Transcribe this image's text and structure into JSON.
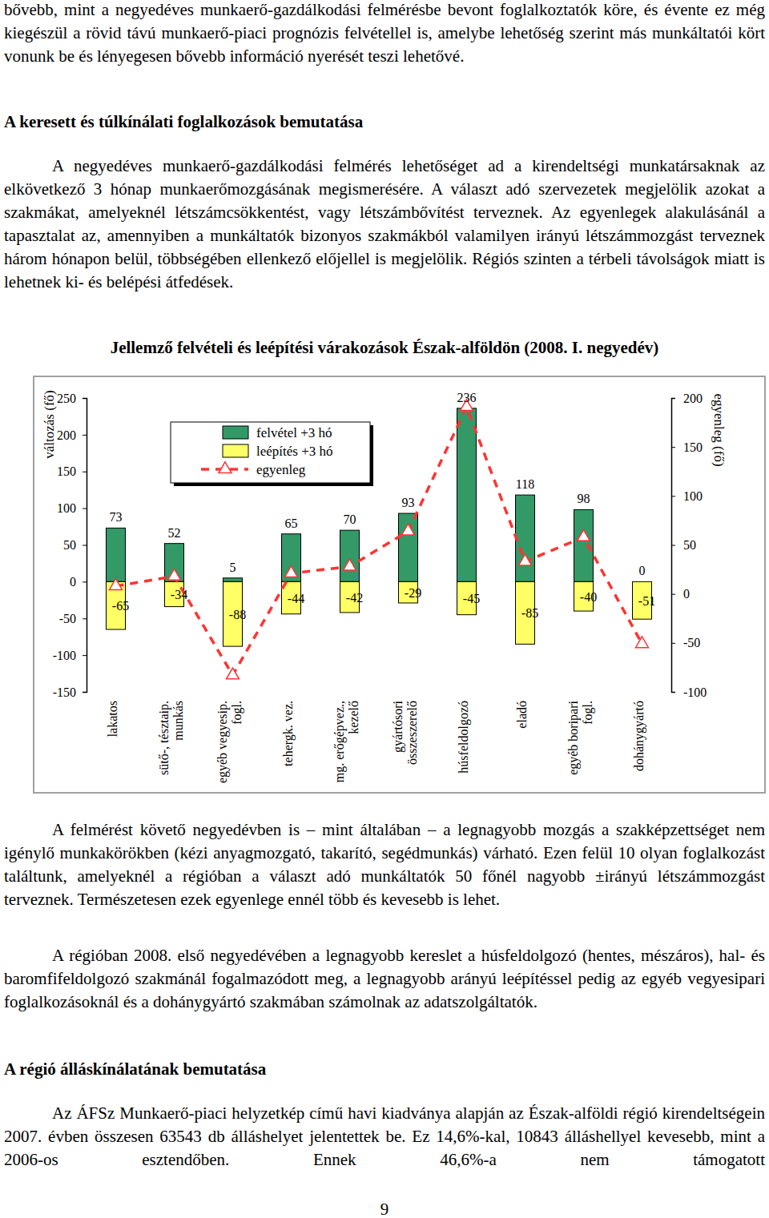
{
  "document": {
    "intro": "bővebb, mint a negyedéves munkaerő-gazdálkodási felmérésbe bevont foglalkoztatók köre, és évente ez még kiegészül a rövid távú munkaerő-piaci prognózis felvétellel is, amelybe lehetőség szerint más munkáltatói kört vonunk be és lényegesen bővebb információ nyerését teszi lehetővé.",
    "heading_1": "A keresett és túlkínálati foglalkozások bemutatása",
    "paragraph_1": "A negyedéves munkaerő-gazdálkodási felmérés lehetőséget ad a kirendeltségi munkatársaknak az elkövetkező 3 hónap munkaerőmozgásának megismerésére. A választ adó szervezetek megjelölik azokat a szakmákat, amelyeknél létszámcsökkentést, vagy létszámbővítést terveznek. Az egyenlegek alakulásánál a tapasztalat az, amennyiben a munkáltatók bizonyos szakmákból valamilyen irányú létszámmozgást terveznek három hónapon belül, többségében ellenkező előjellel is megjelölik. Régiós szinten a térbeli távolságok miatt is lehetnek ki- és belépési átfedések.",
    "paragraph_2": "A felmérést követő negyedévben is – mint általában – a legnagyobb mozgás a szakképzettséget nem igénylő munkakörökben (kézi anyagmozgató, takarító, segédmunkás) várható. Ezen felül 10 olyan foglalkozást találtunk, amelyeknél a régióban a választ adó munkáltatók 50 főnél nagyobb ±irányú létszámmozgást terveznek. Természetesen ezek egyenlege ennél több és kevesebb is lehet.",
    "paragraph_3": "A régióban 2008. első negyedévében a legnagyobb kereslet a húsfeldolgozó (hentes, mészáros), hal- és baromfifeldolgozó szakmánál fogalmazódott meg, a legnagyobb arányú leépítéssel pedig az egyéb vegyesipari foglalkozásoknál és a dohánygyártó szakmában számolnak az adatszolgáltatók.",
    "heading_2": "A régió álláskínálatának bemutatása",
    "paragraph_4": "Az ÁFSz Munkaerő-piaci helyzetkép című havi kiadványa alapján az Észak-alföldi régió kirendeltségein 2007. évben összesen 63543 db álláshelyet jelentettek be. Ez 14,6%-kal, 10843 álláshellyel kevesebb, mint a 2006-os esztendőben. Ennek 46,6%-a nem támogatott",
    "page_number": 9
  },
  "chart_data": {
    "type": "bar",
    "title": "Jellemző felvételi és leépítési várakozások Észak-alföldön (2008. I. negyedév)",
    "y_label": "változás (fő)",
    "y2_label": "egyenleg (fő)",
    "categories": [
      "lakatos",
      "sütő-, tésztaip. munkás",
      "egyéb vegyesip. fogl.",
      "tehergk. vez.",
      "mg. erőgépvez., kezelő",
      "gyártósori összeszerelő",
      "húsfeldolgozó",
      "eladó",
      "egyéb boripari fogl.",
      "dohánygyártó"
    ],
    "series": [
      {
        "name": "felvétel +3 hó",
        "type": "bar",
        "color": "#339966",
        "data_labels": true,
        "values": [
          73,
          52,
          5,
          65,
          70,
          93,
          236,
          118,
          98,
          0
        ]
      },
      {
        "name": "leépítés +3 hó",
        "type": "bar",
        "color": "#ffff66",
        "data_labels": true,
        "values": [
          -65,
          -34,
          -88,
          -44,
          -42,
          -29,
          -45,
          -85,
          -40,
          -51
        ]
      },
      {
        "name": "egyenleg",
        "type": "line",
        "axis": "y2",
        "color": "#ff3333",
        "line_style": "dashed",
        "marker": "triangle",
        "data_labels": false,
        "values": [
          8,
          18,
          -83,
          21,
          28,
          64,
          191,
          33,
          58,
          -51
        ]
      }
    ],
    "ylim": [
      -150,
      250
    ],
    "yticks": [
      -150,
      -100,
      -50,
      0,
      50,
      100,
      150,
      200,
      250
    ],
    "y2lim": [
      -100,
      200
    ],
    "y2ticks": [
      -100,
      -50,
      0,
      50,
      100,
      150,
      200
    ],
    "legend": "upper left",
    "grid": false
  }
}
